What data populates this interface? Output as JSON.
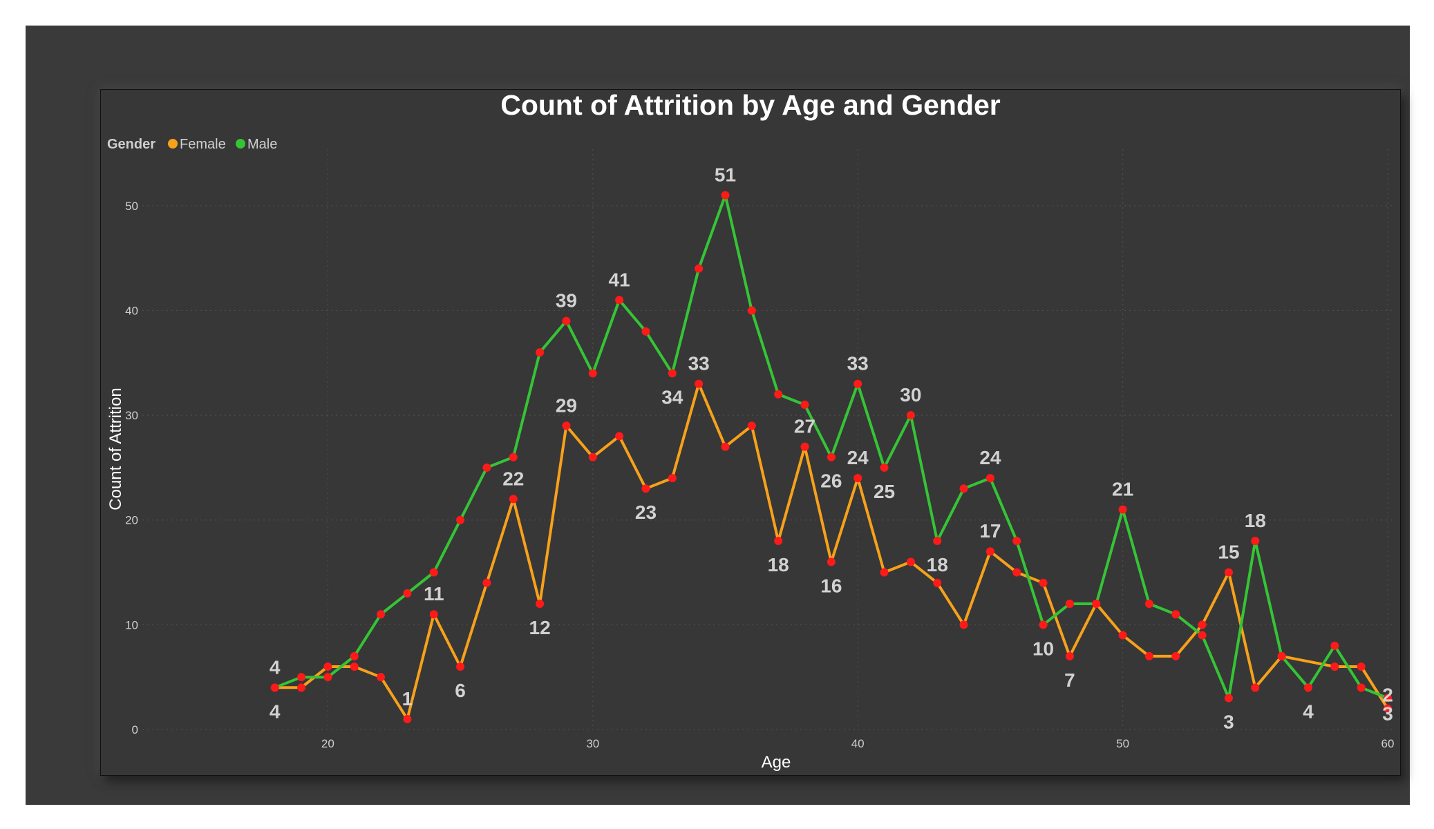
{
  "chart_data": {
    "type": "line",
    "title": "Count of Attrition by Age and Gender",
    "xlabel": "Age",
    "ylabel": "Count of Attrition",
    "legend": {
      "title": "Gender",
      "placement": "top-left"
    },
    "xlim": [
      13,
      60
    ],
    "ylim": [
      0,
      55
    ],
    "xticks": [
      20,
      30,
      40,
      50,
      60
    ],
    "yticks": [
      0,
      10,
      20,
      30,
      40,
      50
    ],
    "grid": true,
    "marker_color": "#ff1a1a",
    "series": [
      {
        "name": "Female",
        "color": "#f7a11a",
        "x": [
          18,
          19,
          20,
          21,
          22,
          23,
          24,
          25,
          26,
          27,
          28,
          29,
          30,
          31,
          32,
          33,
          34,
          35,
          36,
          37,
          38,
          39,
          40,
          41,
          42,
          43,
          44,
          45,
          46,
          47,
          48,
          49,
          50,
          51,
          52,
          53,
          54,
          55,
          56,
          58,
          59,
          60
        ],
        "y": [
          4,
          4,
          6,
          6,
          5,
          1,
          11,
          6,
          14,
          22,
          12,
          29,
          26,
          28,
          23,
          24,
          33,
          27,
          29,
          18,
          27,
          16,
          24,
          15,
          16,
          14,
          10,
          17,
          15,
          14,
          7,
          12,
          9,
          7,
          7,
          10,
          15,
          4,
          7,
          6,
          6,
          2
        ]
      },
      {
        "name": "Male",
        "color": "#35c435",
        "x": [
          18,
          19,
          20,
          21,
          22,
          23,
          24,
          25,
          26,
          27,
          28,
          29,
          30,
          31,
          32,
          33,
          34,
          35,
          36,
          37,
          38,
          39,
          40,
          41,
          42,
          43,
          44,
          45,
          46,
          47,
          48,
          49,
          50,
          51,
          52,
          53,
          54,
          55,
          56,
          57,
          58,
          59,
          60
        ],
        "y": [
          4,
          5,
          5,
          7,
          11,
          13,
          15,
          20,
          25,
          26,
          36,
          39,
          34,
          41,
          38,
          34,
          44,
          51,
          40,
          32,
          31,
          26,
          33,
          25,
          30,
          18,
          23,
          24,
          18,
          10,
          12,
          12,
          21,
          12,
          11,
          9,
          3,
          18,
          7,
          4,
          8,
          4,
          3
        ]
      }
    ],
    "data_labels": [
      {
        "text": "4",
        "x": 18,
        "y": 4,
        "pos": "above"
      },
      {
        "text": "4",
        "x": 18,
        "y": 4,
        "pos": "below"
      },
      {
        "text": "1",
        "x": 23,
        "y": 1,
        "pos": "above"
      },
      {
        "text": "11",
        "x": 24,
        "y": 11,
        "pos": "above"
      },
      {
        "text": "6",
        "x": 25,
        "y": 6,
        "pos": "below"
      },
      {
        "text": "22",
        "x": 27,
        "y": 22,
        "pos": "above"
      },
      {
        "text": "12",
        "x": 28,
        "y": 12,
        "pos": "below"
      },
      {
        "text": "29",
        "x": 29,
        "y": 29,
        "pos": "above"
      },
      {
        "text": "39",
        "x": 29,
        "y": 39,
        "pos": "above"
      },
      {
        "text": "41",
        "x": 31,
        "y": 41,
        "pos": "above"
      },
      {
        "text": "23",
        "x": 32,
        "y": 23,
        "pos": "below"
      },
      {
        "text": "34",
        "x": 33,
        "y": 34,
        "pos": "below"
      },
      {
        "text": "33",
        "x": 34,
        "y": 33,
        "pos": "above"
      },
      {
        "text": "51",
        "x": 35,
        "y": 51,
        "pos": "above"
      },
      {
        "text": "27",
        "x": 38,
        "y": 27,
        "pos": "above"
      },
      {
        "text": "18",
        "x": 37,
        "y": 18,
        "pos": "below"
      },
      {
        "text": "26",
        "x": 39,
        "y": 26,
        "pos": "below"
      },
      {
        "text": "16",
        "x": 39,
        "y": 16,
        "pos": "below"
      },
      {
        "text": "33",
        "x": 40,
        "y": 33,
        "pos": "above"
      },
      {
        "text": "24",
        "x": 40,
        "y": 24,
        "pos": "above"
      },
      {
        "text": "25",
        "x": 41,
        "y": 25,
        "pos": "below"
      },
      {
        "text": "30",
        "x": 42,
        "y": 30,
        "pos": "above"
      },
      {
        "text": "18",
        "x": 43,
        "y": 18,
        "pos": "below"
      },
      {
        "text": "24",
        "x": 45,
        "y": 24,
        "pos": "above"
      },
      {
        "text": "17",
        "x": 45,
        "y": 17,
        "pos": "above"
      },
      {
        "text": "10",
        "x": 47,
        "y": 10,
        "pos": "below"
      },
      {
        "text": "7",
        "x": 48,
        "y": 7,
        "pos": "below"
      },
      {
        "text": "21",
        "x": 50,
        "y": 21,
        "pos": "above"
      },
      {
        "text": "15",
        "x": 54,
        "y": 15,
        "pos": "above"
      },
      {
        "text": "3",
        "x": 54,
        "y": 3,
        "pos": "below"
      },
      {
        "text": "18",
        "x": 55,
        "y": 18,
        "pos": "above"
      },
      {
        "text": "4",
        "x": 57,
        "y": 4,
        "pos": "below"
      },
      {
        "text": "2",
        "x": 60,
        "y": 2,
        "pos": "above2"
      },
      {
        "text": "3",
        "x": 60,
        "y": 3,
        "pos": "below2"
      }
    ]
  }
}
